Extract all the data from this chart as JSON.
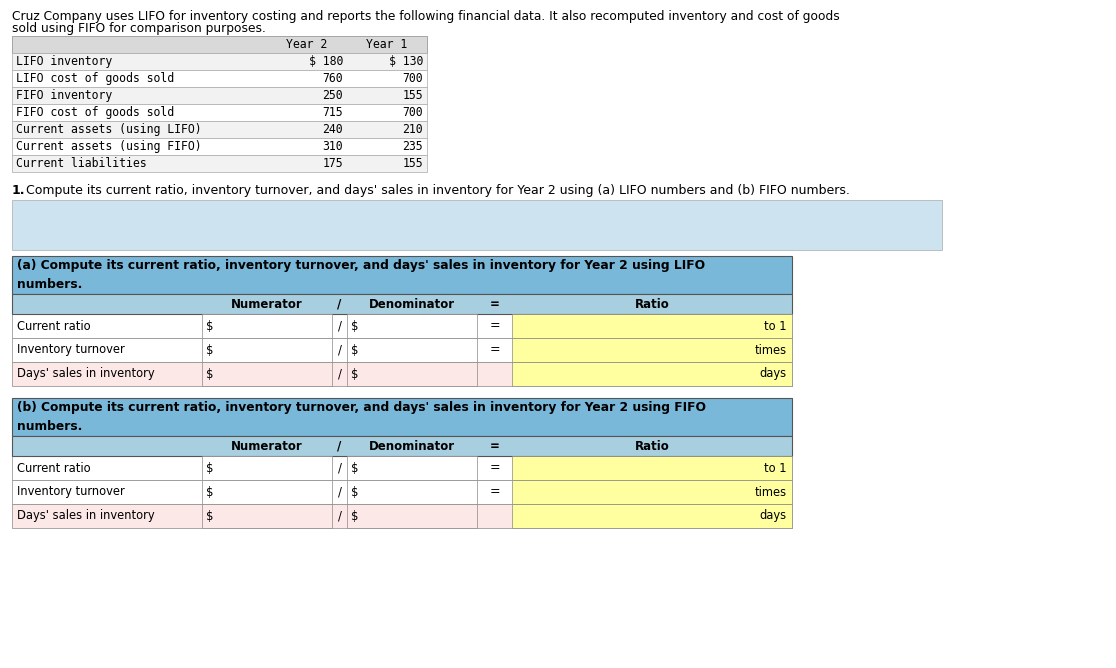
{
  "title_line1": "Cruz Company uses LIFO for inventory costing and reports the following financial data. It also recomputed inventory and cost of goods",
  "title_line2": "sold using FIFO for comparison purposes.",
  "top_table_headers": [
    "",
    "Year 2",
    "Year 1"
  ],
  "top_table_rows": [
    [
      "LIFO inventory",
      "$ 180",
      "$ 130"
    ],
    [
      "LIFO cost of goods sold",
      "760",
      "700"
    ],
    [
      "FIFO inventory",
      "250",
      "155"
    ],
    [
      "FIFO cost of goods sold",
      "715",
      "700"
    ],
    [
      "Current assets (using LIFO)",
      "240",
      "210"
    ],
    [
      "Current assets (using FIFO)",
      "310",
      "235"
    ],
    [
      "Current liabilities",
      "175",
      "155"
    ]
  ],
  "question_bold": "1.",
  "question_rest": " Compute its current ratio, inventory turnover, and days' sales in inventory for Year 2 using (a) LIFO numbers and (b) FIFO numbers.",
  "section_a_line1": "(a) Compute its current ratio, inventory turnover, and days' sales in inventory for Year 2 using LIFO",
  "section_a_line2": "numbers.",
  "section_b_line1": "(b) Compute its current ratio, inventory turnover, and days' sales in inventory for Year 2 using FIFO",
  "section_b_line2": "numbers.",
  "calc_col_headers": [
    "",
    "Numerator",
    "/",
    "Denominator",
    "=",
    "Ratio"
  ],
  "calc_rows": [
    [
      "Current ratio",
      "$",
      "/",
      "$",
      "=",
      "to 1"
    ],
    [
      "Inventory turnover",
      "$",
      "/",
      "$",
      "=",
      "times"
    ],
    [
      "Days' sales in inventory",
      "$",
      "/",
      "$",
      "",
      "days"
    ]
  ],
  "col_header_bg": "#7ab8d9",
  "section_hdr_bg": "#7ab8d9",
  "subhdr_bg": "#a8cfe0",
  "ratio_yellow": "#ffffa0",
  "light_blue_bg": "#cde4f0",
  "row_white": "#ffffff",
  "row_pink": "#fde8e8",
  "top_hdr_bg": "#d9d9d9",
  "top_row_alt": "#f2f2f2"
}
